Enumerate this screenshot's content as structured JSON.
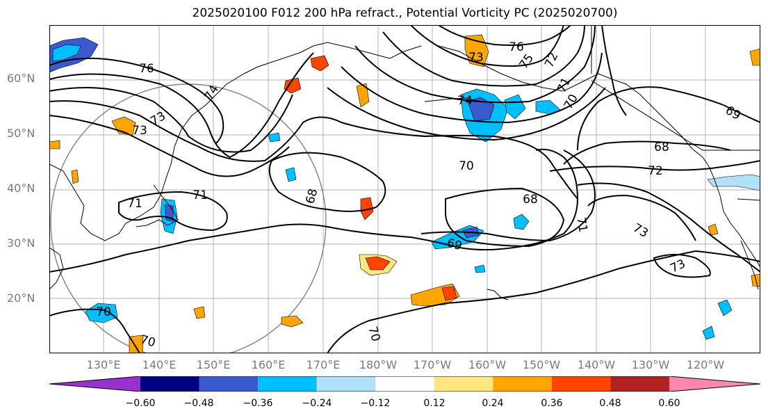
{
  "title": "2025020100 F012 200 hPa refract., Potential Vorticity PC (2025020700)",
  "map": {
    "lat_labels": [
      {
        "text": "60°N",
        "lat": 60
      },
      {
        "text": "50°N",
        "lat": 50
      },
      {
        "text": "40°N",
        "lat": 40
      },
      {
        "text": "30°N",
        "lat": 30
      },
      {
        "text": "20°N",
        "lat": 20
      }
    ],
    "lon_labels": [
      {
        "text": "130°E",
        "lon": 130
      },
      {
        "text": "140°E",
        "lon": 140
      },
      {
        "text": "150°E",
        "lon": 150
      },
      {
        "text": "160°E",
        "lon": 160
      },
      {
        "text": "170°E",
        "lon": 170
      },
      {
        "text": "180°W",
        "lon": 180
      },
      {
        "text": "170°W",
        "lon": 190
      },
      {
        "text": "160°W",
        "lon": 200
      },
      {
        "text": "150°W",
        "lon": 210
      },
      {
        "text": "140°W",
        "lon": 220
      },
      {
        "text": "130°W",
        "lon": 230
      },
      {
        "text": "120°W",
        "lon": 240
      }
    ],
    "contour_labels": [
      {
        "text": "76",
        "lon": 127,
        "lat": 63
      },
      {
        "text": "74",
        "lon": 149,
        "lat": 57.5
      },
      {
        "text": "73",
        "lon": 134,
        "lat": 52.5
      },
      {
        "text": "73",
        "lon": 133,
        "lat": 50.5
      },
      {
        "text": "71",
        "lon": 148,
        "lat": 38.5
      },
      {
        "text": "71",
        "lon": 142,
        "lat": 35.5
      },
      {
        "text": "68",
        "lon": 170,
        "lat": 37.5
      },
      {
        "text": "70",
        "lon": 197,
        "lat": 42
      },
      {
        "text": "76",
        "lon": 205,
        "lat": 66
      },
      {
        "text": "73",
        "lon": 200,
        "lat": 65
      },
      {
        "text": "75",
        "lon": 209,
        "lat": 63.5
      },
      {
        "text": "72",
        "lon": 213.5,
        "lat": 64
      },
      {
        "text": "71",
        "lon": 214.5,
        "lat": 59
      },
      {
        "text": "70",
        "lon": 214,
        "lat": 56
      },
      {
        "text": "74",
        "lon": 198,
        "lat": 54.5
      },
      {
        "text": "69",
        "lon": 232,
        "lat": 53.5
      },
      {
        "text": "68",
        "lon": 225.5,
        "lat": 47.5
      },
      {
        "text": "72",
        "lon": 226,
        "lat": 43.5
      },
      {
        "text": "68",
        "lon": 207,
        "lat": 38
      },
      {
        "text": "71",
        "lon": 215,
        "lat": 33
      },
      {
        "text": "73",
        "lon": 225.5,
        "lat": 32.5
      },
      {
        "text": "73",
        "lon": 230,
        "lat": 25.5
      },
      {
        "text": "69",
        "lon": 195,
        "lat": 30
      },
      {
        "text": "70",
        "lon": 130,
        "lat": 17.5
      },
      {
        "text": "70",
        "lon": 135.5,
        "lat": 12.5
      },
      {
        "text": "70",
        "lon": 181.5,
        "lat": 13.5
      }
    ]
  },
  "colorbar": {
    "colors": [
      "#9932cc",
      "#000080",
      "#3a5acf",
      "#00bfff",
      "#b0e0fa",
      "#ffffff",
      "#ffe680",
      "#ffa500",
      "#ff4500",
      "#b22222",
      "#ff88aa"
    ],
    "tick_labels": [
      "−0.60",
      "−0.48",
      "−0.36",
      "−0.24",
      "−0.12",
      "0.12",
      "0.24",
      "0.36",
      "0.48",
      "0.60"
    ]
  }
}
